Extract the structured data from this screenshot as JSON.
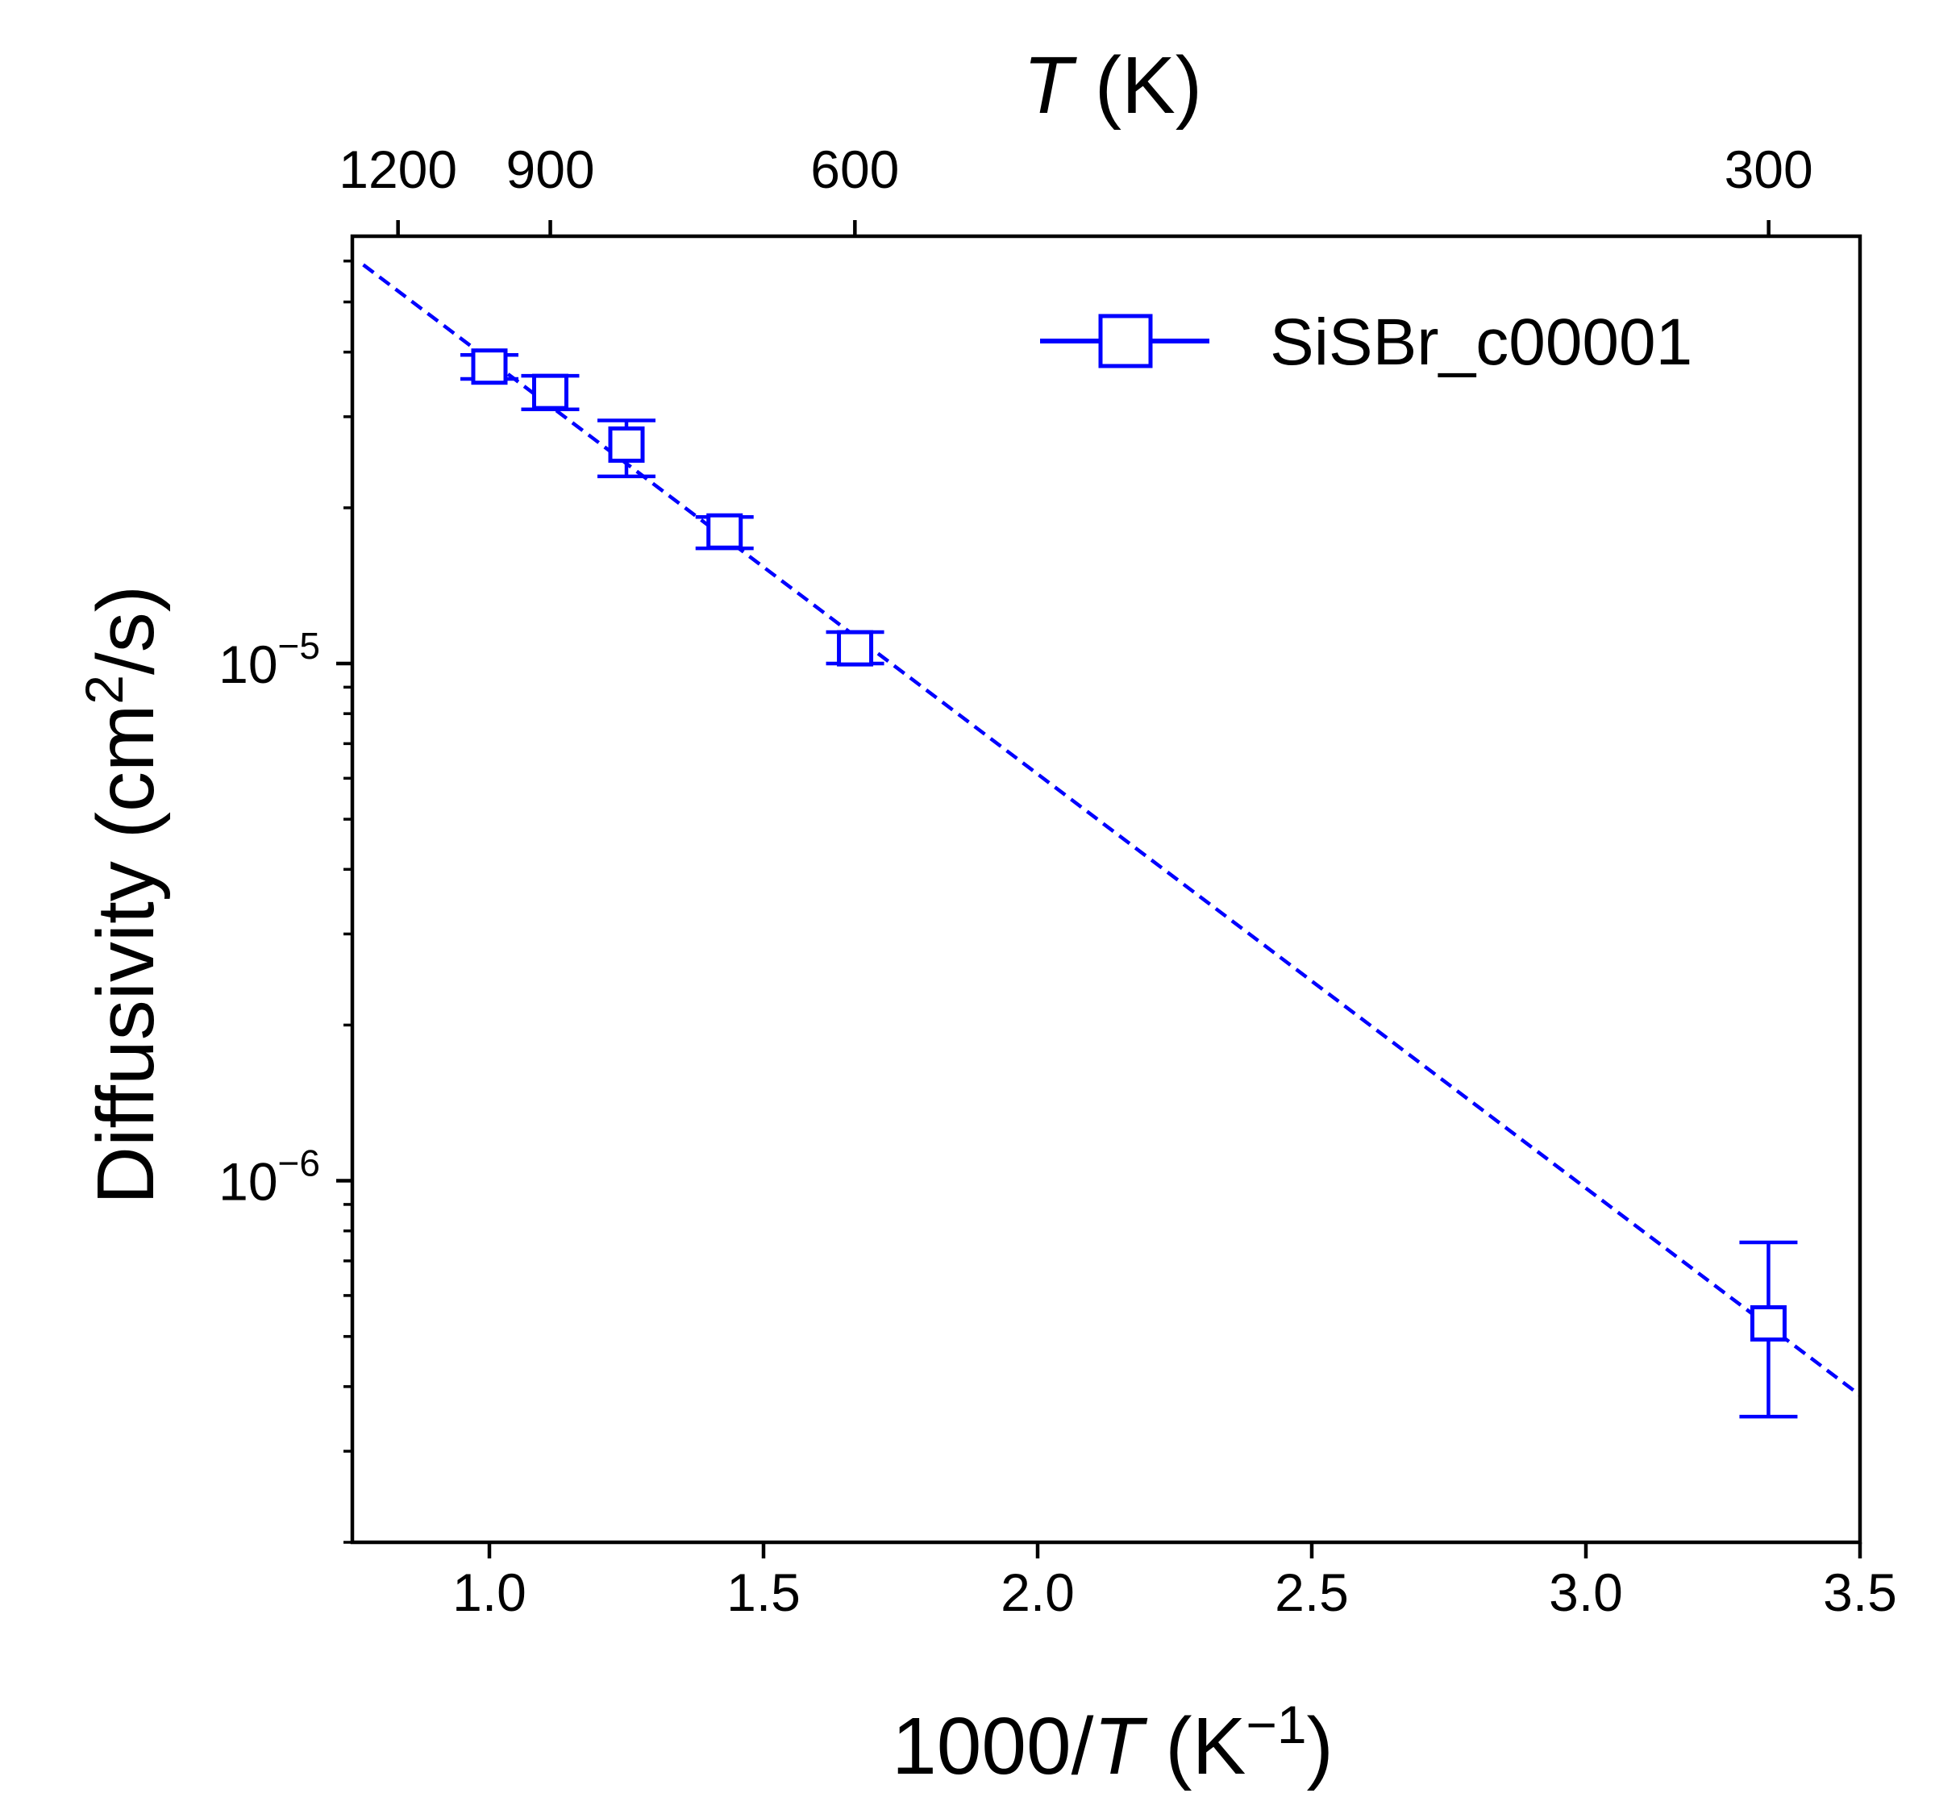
{
  "chart_data": {
    "type": "scatter",
    "x_axis": {
      "label_prefix": "1000/",
      "label_var": "T",
      "label_unit_open": " (K",
      "label_unit_exp": "−1",
      "label_unit_close": ")",
      "scale": "linear",
      "range": [
        0.75,
        3.5
      ],
      "ticks": [
        1.0,
        1.5,
        2.0,
        2.5,
        3.0,
        3.5
      ],
      "tick_labels": [
        "1.0",
        "1.5",
        "2.0",
        "2.5",
        "3.0",
        "3.5"
      ]
    },
    "top_axis": {
      "label_var": "T",
      "label_unit": " (K)",
      "ticks_T": [
        1200,
        900,
        600,
        300
      ],
      "tick_labels": [
        "1200",
        "900",
        "600",
        "300"
      ]
    },
    "y_axis": {
      "label_main": "Diffusivity (cm",
      "label_exp": "2",
      "label_tail": "/s)",
      "scale": "log",
      "range": [
        2e-07,
        6.7e-05
      ],
      "major_ticks": [
        1e-06,
        1e-05
      ],
      "major_tick_labels": [
        {
          "base": "10",
          "exp": "−6"
        },
        {
          "base": "10",
          "exp": "−5"
        }
      ]
    },
    "series": [
      {
        "name": "SiSBr_c00001",
        "color": "#0000ff",
        "marker": "open-square",
        "points": [
          {
            "x": 1.0,
            "y": 3.75e-05,
            "y_err_low": 3.55e-05,
            "y_err_high": 3.95e-05
          },
          {
            "x": 1.111,
            "y": 3.35e-05,
            "y_err_low": 3.1e-05,
            "y_err_high": 3.6e-05
          },
          {
            "x": 1.25,
            "y": 2.65e-05,
            "y_err_low": 2.3e-05,
            "y_err_high": 2.95e-05
          },
          {
            "x": 1.429,
            "y": 1.8e-05,
            "y_err_low": 1.67e-05,
            "y_err_high": 1.92e-05
          },
          {
            "x": 1.667,
            "y": 1.07e-05,
            "y_err_low": 1e-05,
            "y_err_high": 1.15e-05
          },
          {
            "x": 3.333,
            "y": 5.3e-07,
            "y_err_low": 3.5e-07,
            "y_err_high": 7.6e-07
          }
        ]
      }
    ],
    "fit_line": {
      "style": "dashed",
      "color": "#0000ff",
      "x": [
        0.77,
        3.5
      ],
      "y": [
        5.9e-05,
        3.85e-07
      ]
    },
    "legend": {
      "position": "top-right",
      "entries": [
        "SiSBr_c00001"
      ]
    },
    "grid": false
  }
}
